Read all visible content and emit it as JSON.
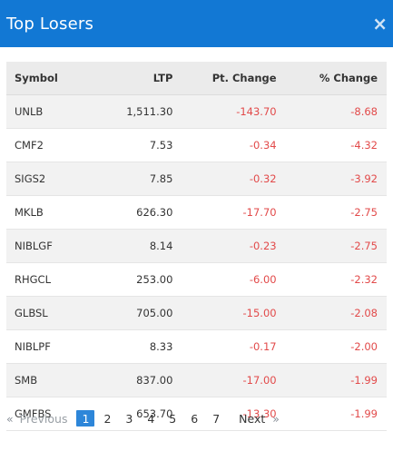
{
  "modal": {
    "title": "Top Losers",
    "close_icon": "×"
  },
  "table": {
    "headers": {
      "symbol": "Symbol",
      "ltp": "LTP",
      "pt_change": "Pt. Change",
      "pct_change": "% Change"
    },
    "rows": [
      {
        "symbol": "UNLB",
        "ltp": "1,511.30",
        "pt": "-143.70",
        "pct": "-8.68"
      },
      {
        "symbol": "CMF2",
        "ltp": "7.53",
        "pt": "-0.34",
        "pct": "-4.32"
      },
      {
        "symbol": "SIGS2",
        "ltp": "7.85",
        "pt": "-0.32",
        "pct": "-3.92"
      },
      {
        "symbol": "MKLB",
        "ltp": "626.30",
        "pt": "-17.70",
        "pct": "-2.75"
      },
      {
        "symbol": "NIBLGF",
        "ltp": "8.14",
        "pt": "-0.23",
        "pct": "-2.75"
      },
      {
        "symbol": "RHGCL",
        "ltp": "253.00",
        "pt": "-6.00",
        "pct": "-2.32"
      },
      {
        "symbol": "GLBSL",
        "ltp": "705.00",
        "pt": "-15.00",
        "pct": "-2.08"
      },
      {
        "symbol": "NIBLPF",
        "ltp": "8.33",
        "pt": "-0.17",
        "pct": "-2.00"
      },
      {
        "symbol": "SMB",
        "ltp": "837.00",
        "pt": "-17.00",
        "pct": "-1.99"
      },
      {
        "symbol": "GMFBS",
        "ltp": "653.70",
        "pt": "-13.30",
        "pct": "-1.99"
      }
    ]
  },
  "pagination": {
    "prev_arrow": "«",
    "previous": "Previous",
    "pages": [
      "1",
      "2",
      "3",
      "4",
      "5",
      "6",
      "7"
    ],
    "active_page": "1",
    "next": "Next",
    "next_arrow": "»"
  },
  "colors": {
    "header_bg": "#1278d4",
    "negative": "#e24a4a",
    "active_page": "#2d86d9"
  }
}
